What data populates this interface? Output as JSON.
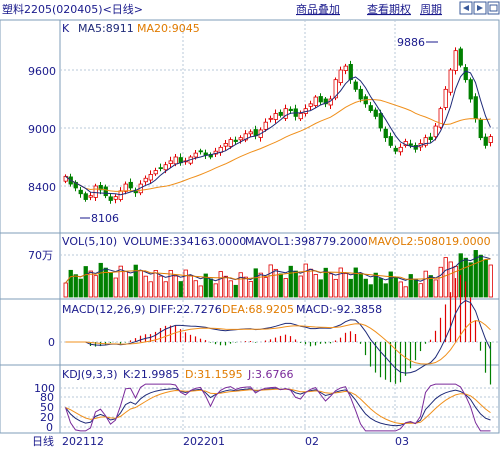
{
  "header": {
    "title": "塑料2205(020405)<日线>",
    "links": [
      "商品叠加",
      "查看期权",
      "周期"
    ],
    "nav_icons": [
      "arrow-left-icon",
      "arrow-right-icon",
      "expand-icon"
    ]
  },
  "price_panel": {
    "label_k": "K",
    "ma5_label": "MA5:8911",
    "ma20_label": "MA20:9045",
    "y_ticks": [
      "9600",
      "9000",
      "8400"
    ],
    "high_annotation": "9886",
    "low_annotation": "8106"
  },
  "volume_panel": {
    "label": "VOL(5,10)",
    "volume": "VOLUME:334163.0000",
    "mavol1": "MAVOL1:398779.2000",
    "mavol2": "MAVOL2:508019.0000",
    "y_tick": "70万"
  },
  "macd_panel": {
    "label": "MACD(12,26,9)",
    "diff": "DIFF:22.7276",
    "dea": "DEA:68.9205",
    "macd": "MACD:-92.3858",
    "y_tick": "0"
  },
  "kdj_panel": {
    "label": "KDJ(9,3,3)",
    "k": "K:21.9985",
    "d": "D:31.1595",
    "j": "J:3.6766",
    "y_ticks": [
      "100",
      "80",
      "50",
      "20",
      "0"
    ]
  },
  "x_axis": {
    "period_label": "日线",
    "date_labels": [
      "202112",
      "202201",
      "02",
      "03"
    ]
  },
  "colors": {
    "up": "#e00000",
    "down": "#008000",
    "ma5": "#1e2a78",
    "ma20": "#f0901c",
    "mavol2": "#e07b00",
    "grid": "#b8c8d8",
    "text": "#1a1a8c",
    "label_orange": "#e07b00"
  },
  "chart_data": [
    {
      "type": "candlestick",
      "title": "塑料2205(020405)<日线>",
      "x_labels": [
        "202112",
        "202201",
        "02",
        "03"
      ],
      "y_ticks": [
        8400,
        9000,
        9600
      ],
      "annotations": {
        "high": 9886,
        "low": 8106
      },
      "series": [
        {
          "name": "MA5",
          "last": 8911
        },
        {
          "name": "MA20",
          "last": 9045
        }
      ],
      "close": [
        8500,
        8420,
        8380,
        8320,
        8260,
        8300,
        8400,
        8360,
        8300,
        8250,
        8290,
        8350,
        8420,
        8380,
        8330,
        8420,
        8480,
        8520,
        8560,
        8580,
        8620,
        8660,
        8700,
        8640,
        8660,
        8700,
        8740,
        8760,
        8720,
        8700,
        8760,
        8800,
        8840,
        8880,
        8860,
        8900,
        8940,
        8960,
        8920,
        8980,
        9060,
        9100,
        9150,
        9130,
        9200,
        9180,
        9120,
        9150,
        9200,
        9250,
        9320,
        9270,
        9250,
        9300,
        9500,
        9600,
        9640,
        9500,
        9400,
        9300,
        9250,
        9180,
        9120,
        9000,
        8900,
        8820,
        8760,
        8800,
        8860,
        8820,
        8780,
        8840,
        8900,
        8880,
        9020,
        9200,
        9400,
        9600,
        9800,
        9650,
        9500,
        9300,
        9100,
        8900,
        8820,
        8911
      ]
    },
    {
      "type": "bar",
      "title": "VOL(5,10)",
      "series": [
        {
          "name": "VOLUME",
          "last": 334163.0
        },
        {
          "name": "MAVOL1",
          "last": 398779.2
        },
        {
          "name": "MAVOL2",
          "last": 508019.0
        }
      ],
      "y_ticks": [
        "70万"
      ]
    },
    {
      "type": "line",
      "title": "MACD(12,26,9)",
      "series": [
        {
          "name": "DIFF",
          "last": 22.7276
        },
        {
          "name": "DEA",
          "last": 68.9205
        },
        {
          "name": "MACD",
          "last": -92.3858
        }
      ],
      "y_ticks": [
        0
      ]
    },
    {
      "type": "line",
      "title": "KDJ(9,3,3)",
      "series": [
        {
          "name": "K",
          "last": 21.9985
        },
        {
          "name": "D",
          "last": 31.1595
        },
        {
          "name": "J",
          "last": 3.6766
        }
      ],
      "y_ticks": [
        100,
        80,
        50,
        20,
        0
      ]
    }
  ]
}
